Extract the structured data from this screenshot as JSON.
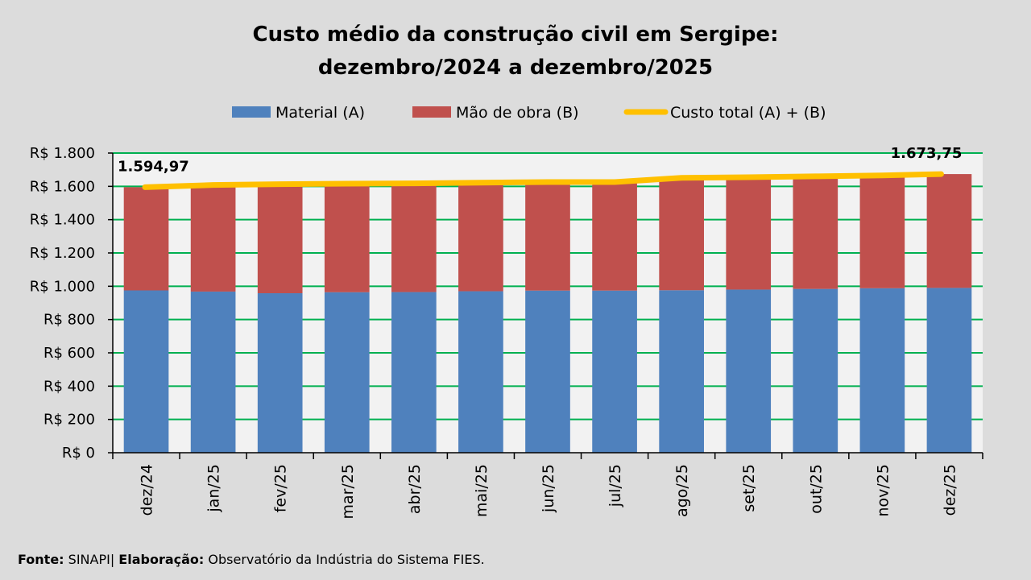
{
  "chart_data": {
    "type": "bar",
    "stacked": true,
    "title": "Custo médio da construção civil em Sergipe:",
    "subtitle": "dezembro/2024 a dezembro/2025",
    "categories": [
      "dez/24",
      "jan/25",
      "fev/25",
      "mar/25",
      "abr/25",
      "mai/25",
      "jun/25",
      "jul/25",
      "ago/25",
      "set/25",
      "out/25",
      "nov/25",
      "dez/25"
    ],
    "ylim": [
      0,
      1800
    ],
    "ytick_values": [
      0,
      200,
      400,
      600,
      800,
      1000,
      1200,
      1400,
      1600,
      1800
    ],
    "ytick_labels": [
      "R$ 0",
      "R$ 200",
      "R$ 400",
      "R$ 600",
      "R$ 800",
      "R$ 1.000",
      "R$ 1.200",
      "R$ 1.400",
      "R$ 1.600",
      "R$ 1.800"
    ],
    "grid": true,
    "legend_position": "top",
    "series": [
      {
        "name": "Material (A)",
        "kind": "bar",
        "color": "#4f81bd",
        "values": [
          975,
          968,
          958,
          964,
          965,
          970,
          974,
          974,
          976,
          980,
          984,
          988,
          990
        ]
      },
      {
        "name": "Mão de obra (B)",
        "kind": "bar",
        "color": "#c0504d",
        "values": [
          619.97,
          640,
          655,
          652,
          653,
          652,
          652,
          652,
          675,
          675,
          676,
          678,
          683.75
        ]
      },
      {
        "name": "Custo total (A) + (B)",
        "kind": "line",
        "color": "#ffc000",
        "values": [
          1594.97,
          1608,
          1613,
          1616,
          1618,
          1622,
          1626,
          1626,
          1651,
          1655,
          1660,
          1666,
          1673.75
        ]
      }
    ],
    "annotations": [
      {
        "category": "dez/24",
        "text": "1.594,97"
      },
      {
        "category": "dez/25",
        "text": "1.673,75"
      }
    ]
  },
  "footer": {
    "source_label": "Fonte:",
    "source_value": "SINAPI| ",
    "credit_label": "Elaboração:",
    "credit_value": "Observatório da Indústria do Sistema FIES."
  }
}
